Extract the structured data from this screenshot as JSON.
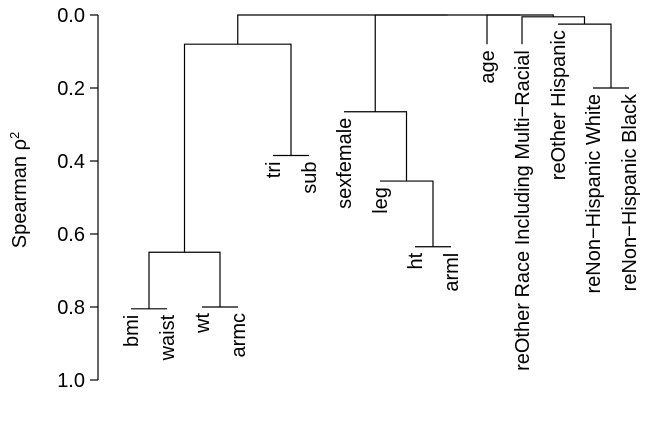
{
  "chart_data": {
    "type": "dendrogram",
    "ylabel": "Spearman ρ",
    "ylabel_sup": "2",
    "ylim": [
      0,
      1
    ],
    "y_reversed": true,
    "y_ticks": [
      0,
      0.2,
      0.4,
      0.6,
      0.8,
      1
    ],
    "y_tick_labels": [
      "0.0",
      "0.2",
      "0.4",
      "0.6",
      "0.8",
      "1.0"
    ],
    "leaves": [
      "bmi",
      "waist",
      "wt",
      "armc",
      "tri",
      "sub",
      "sexfemale",
      "leg",
      "ht",
      "arml",
      "age",
      "reOther Race Including Multi-Racial",
      "reOther Hispanic",
      "reNon-Hispanic White",
      "reNon-Hispanic Black"
    ],
    "leaf_heights": [
      0.805,
      0.805,
      0.8,
      0.8,
      0.385,
      0.385,
      0.265,
      0.455,
      0.635,
      0.635,
      0.08,
      0.08,
      0.025,
      0.2,
      0.2
    ],
    "merges": [
      {
        "a": "L:bmi",
        "b": "L:waist",
        "height": 0.805
      },
      {
        "a": "L:wt",
        "b": "L:armc",
        "height": 0.8
      },
      {
        "a": "M:0",
        "b": "M:1",
        "height": 0.65
      },
      {
        "a": "L:tri",
        "b": "L:sub",
        "height": 0.385
      },
      {
        "a": "M:2",
        "b": "M:3",
        "height": 0.08
      },
      {
        "a": "L:ht",
        "b": "L:arml",
        "height": 0.635
      },
      {
        "a": "L:leg",
        "b": "M:5",
        "height": 0.455
      },
      {
        "a": "L:sexfemale",
        "b": "M:6",
        "height": 0.265
      },
      {
        "a": "L:reNon-Hispanic White",
        "b": "L:reNon-Hispanic Black",
        "height": 0.2
      },
      {
        "a": "L:reOther Hispanic",
        "b": "M:8",
        "height": 0.025
      },
      {
        "a": "L:reOther Race Including Multi-Racial",
        "b": "M:9",
        "height": 0.005
      },
      {
        "a": "L:age",
        "b": "M:10",
        "height": 0.0
      },
      {
        "a": "M:7",
        "b": "M:11",
        "height": 0.0
      },
      {
        "a": "M:4",
        "b": "M:12",
        "height": 0.0
      }
    ]
  }
}
